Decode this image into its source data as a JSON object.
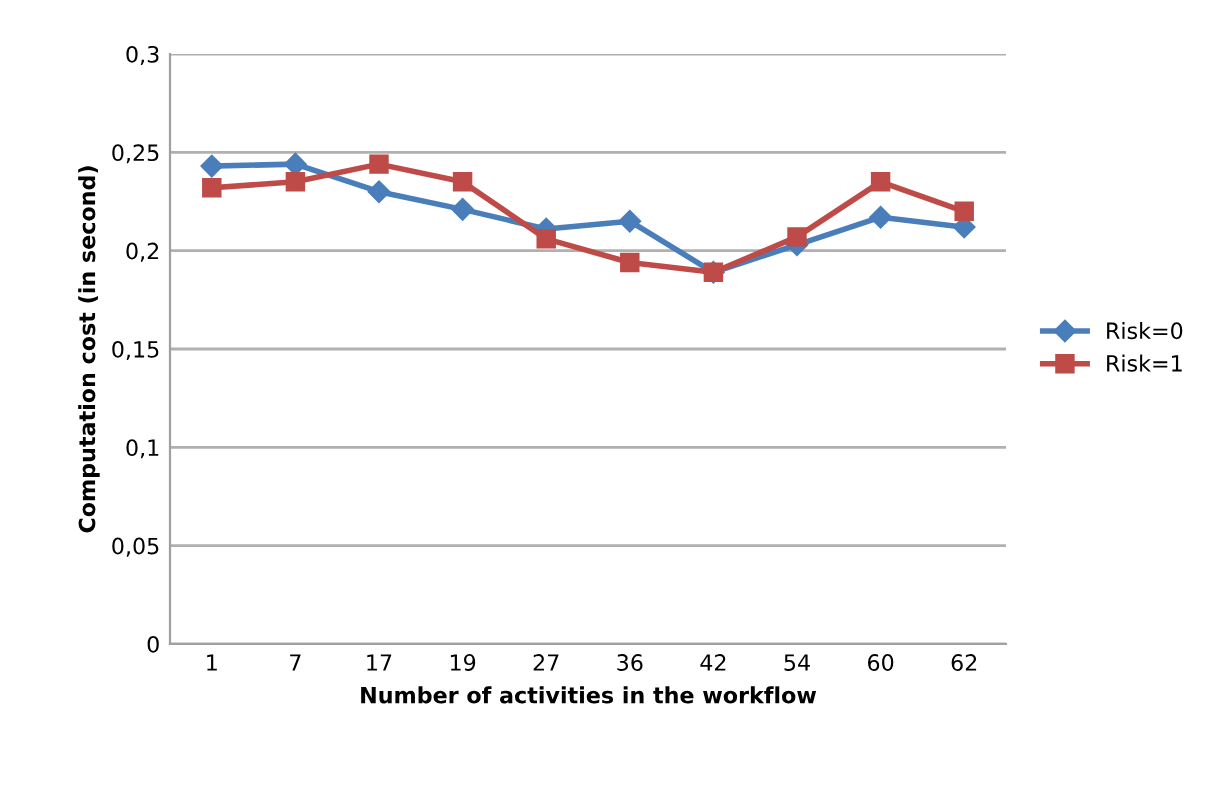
{
  "chart_data": {
    "type": "line",
    "xlabel": "Number of activities in the workflow",
    "ylabel": "Computation cost (in second)",
    "categories": [
      "1",
      "7",
      "17",
      "19",
      "27",
      "36",
      "42",
      "54",
      "60",
      "62"
    ],
    "series": [
      {
        "name": "Risk=0",
        "color": "#4a7ebb",
        "marker": "diamond",
        "values": [
          0.243,
          0.244,
          0.23,
          0.221,
          0.211,
          0.215,
          0.189,
          0.203,
          0.217,
          0.212
        ]
      },
      {
        "name": "Risk=1",
        "color": "#be4b48",
        "marker": "square",
        "values": [
          0.232,
          0.235,
          0.244,
          0.235,
          0.206,
          0.194,
          0.189,
          0.207,
          0.235,
          0.22
        ]
      }
    ],
    "ylim": [
      0,
      0.3
    ],
    "yticks": [
      {
        "value": 0,
        "label": "0"
      },
      {
        "value": 0.05,
        "label": "0,05"
      },
      {
        "value": 0.1,
        "label": "0,1"
      },
      {
        "value": 0.15,
        "label": "0,15"
      },
      {
        "value": 0.2,
        "label": "0,2"
      },
      {
        "value": 0.25,
        "label": "0,25"
      },
      {
        "value": 0.3,
        "label": "0,3"
      }
    ],
    "grid": "y",
    "legend": "right"
  }
}
